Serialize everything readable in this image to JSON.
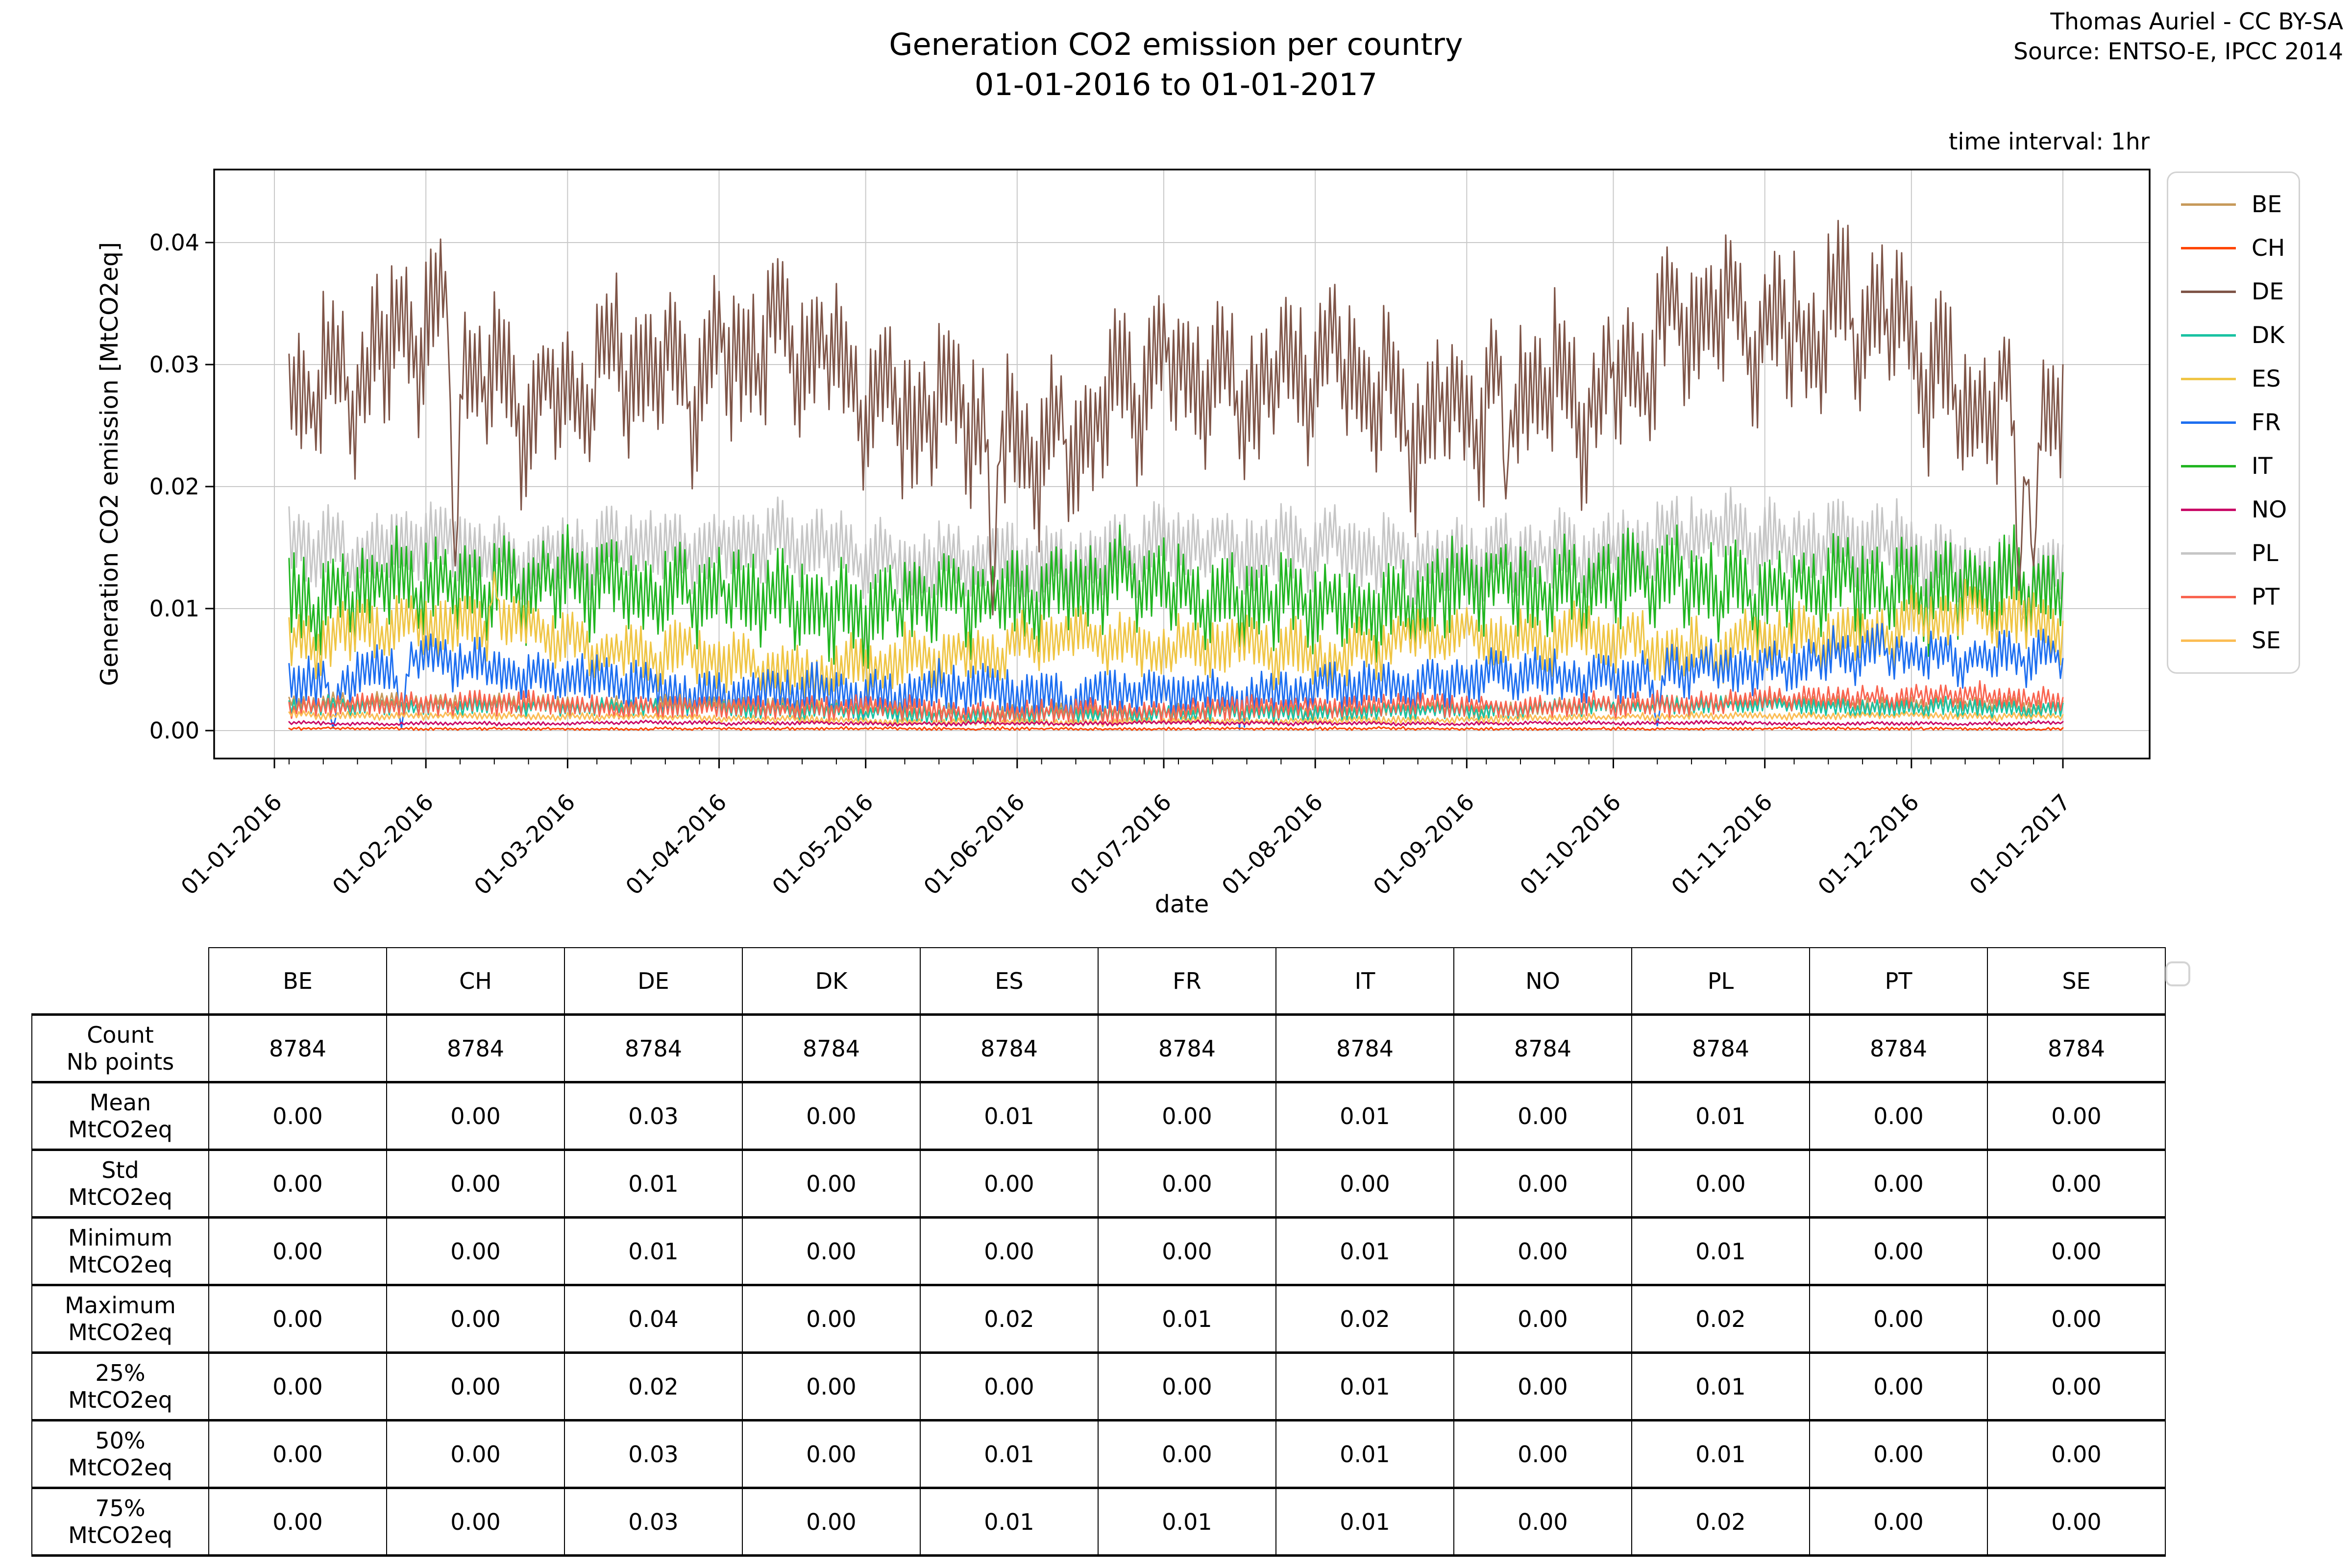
{
  "page": {
    "title_line1": "Generation CO2 emission per country",
    "title_line2": "01-01-2016 to 01-01-2017",
    "attribution_line1": "Thomas Auriel - CC BY-SA",
    "attribution_line2": "Source: ENTSO-E, IPCC 2014",
    "time_interval_note": "time interval: 1hr"
  },
  "chart_data": {
    "type": "line",
    "title": "Generation CO2 emission per country 01-01-2016 to 01-01-2017",
    "xlabel": "date",
    "ylabel": "Generation CO2 emission [MtCO2eq]",
    "x_tick_labels": [
      "01-01-2016",
      "01-02-2016",
      "01-03-2016",
      "01-04-2016",
      "01-05-2016",
      "01-06-2016",
      "01-07-2016",
      "01-08-2016",
      "01-09-2016",
      "01-10-2016",
      "01-11-2016",
      "01-12-2016",
      "01-01-2017"
    ],
    "month_day_offsets": [
      0,
      31,
      60,
      91,
      121,
      152,
      182,
      213,
      244,
      274,
      305,
      335,
      366
    ],
    "y_ticks": [
      "0.00",
      "0.01",
      "0.02",
      "0.03",
      "0.04"
    ],
    "y_tick_values": [
      0.0,
      0.01,
      0.02,
      0.03,
      0.04
    ],
    "ylim": [
      -0.0023,
      0.046
    ],
    "x_range_days": 366,
    "data_start_day": 3,
    "grid": true,
    "grid_color": "#c9c9c9",
    "axis_color": "#000000",
    "legend_position": "right",
    "draw_order": [
      "PL",
      "IT",
      "ES",
      "FR",
      "BE",
      "DK",
      "PT",
      "SE",
      "NO",
      "CH",
      "DE"
    ],
    "series": [
      {
        "name": "BE",
        "color": "#c79a5b",
        "monthly_levels": [
          0.0021,
          0.0026,
          0.0023,
          0.0021,
          0.0018,
          0.0016,
          0.0016,
          0.0016,
          0.0019,
          0.0021,
          0.0023,
          0.0023,
          0.0021
        ],
        "daily_amplitude": 0.00055,
        "noise": 0.00018,
        "weekend_dip": 0.06,
        "wander": 0.0002,
        "spikes": []
      },
      {
        "name": "CH",
        "color": "#ff4500",
        "monthly_levels": [
          0.00015,
          0.00015,
          0.00015,
          0.00015,
          0.00015,
          0.00015,
          0.00015,
          0.00015,
          0.00015,
          0.00015,
          0.00015,
          0.00015,
          0.00015
        ],
        "daily_amplitude": 8e-05,
        "noise": 6e-05,
        "weekend_dip": 0,
        "wander": 4e-05,
        "spikes": []
      },
      {
        "name": "DE",
        "color": "#7f5548",
        "monthly_levels": [
          0.0258,
          0.0338,
          0.0302,
          0.0308,
          0.0292,
          0.0266,
          0.0292,
          0.0282,
          0.0292,
          0.031,
          0.033,
          0.0342,
          0.0262
        ],
        "daily_amplitude": 0.0046,
        "noise": 0.0012,
        "weekend_dip": 0.12,
        "wander": 0.004,
        "spikes": [
          {
            "day": 37,
            "value": 0.0135
          },
          {
            "day": 147,
            "value": 0.0095
          },
          {
            "day": 252,
            "value": 0.019
          },
          {
            "day": 357,
            "value": 0.0115
          },
          {
            "day": 360,
            "value": 0.0135
          }
        ]
      },
      {
        "name": "DK",
        "color": "#1ac2a2",
        "monthly_levels": [
          0.0019,
          0.0022,
          0.002,
          0.0018,
          0.0015,
          0.0013,
          0.0013,
          0.0015,
          0.0018,
          0.002,
          0.0021,
          0.002,
          0.0018
        ],
        "daily_amplitude": 0.0006,
        "noise": 0.0002,
        "weekend_dip": 0.1,
        "wander": 0.0002,
        "spikes": []
      },
      {
        "name": "ES",
        "color": "#efc545",
        "monthly_levels": [
          0.0075,
          0.0095,
          0.007,
          0.006,
          0.0055,
          0.0065,
          0.0075,
          0.007,
          0.0075,
          0.007,
          0.008,
          0.009,
          0.0088
        ],
        "daily_amplitude": 0.002,
        "noise": 0.0005,
        "weekend_dip": 0.1,
        "wander": 0.0012,
        "spikes": [
          {
            "day": 45,
            "value": 0.013
          }
        ]
      },
      {
        "name": "FR",
        "color": "#1e6ff0",
        "monthly_levels": [
          0.0042,
          0.0055,
          0.0045,
          0.0035,
          0.003,
          0.003,
          0.0035,
          0.0032,
          0.004,
          0.005,
          0.0058,
          0.0062,
          0.006
        ],
        "daily_amplitude": 0.0017,
        "noise": 0.0004,
        "weekend_dip": 0.15,
        "wander": 0.0008,
        "spikes": [
          {
            "day": 12,
            "value": 0.0002
          },
          {
            "day": 26,
            "value": 0.0002
          },
          {
            "day": 283,
            "value": 0.0004
          }
        ]
      },
      {
        "name": "IT",
        "color": "#21b521",
        "monthly_levels": [
          0.0121,
          0.0128,
          0.0121,
          0.0118,
          0.0113,
          0.0113,
          0.0121,
          0.0113,
          0.0118,
          0.0122,
          0.0128,
          0.0128,
          0.0113
        ],
        "daily_amplitude": 0.003,
        "noise": 0.0007,
        "weekend_dip": 0.16,
        "wander": 0.0012,
        "spikes": []
      },
      {
        "name": "NO",
        "color": "#c90b67",
        "monthly_levels": [
          0.0006,
          0.0006,
          0.0006,
          0.0006,
          0.0006,
          0.0006,
          0.0006,
          0.0006,
          0.0006,
          0.0006,
          0.0006,
          0.0006,
          0.0006
        ],
        "daily_amplitude": 0.00012,
        "noise": 5e-05,
        "weekend_dip": 0,
        "wander": 8e-05,
        "spikes": []
      },
      {
        "name": "PL",
        "color": "#c6c6c6",
        "monthly_levels": [
          0.0148,
          0.0158,
          0.015,
          0.015,
          0.0148,
          0.0143,
          0.0148,
          0.015,
          0.015,
          0.0152,
          0.0158,
          0.0156,
          0.0128
        ],
        "daily_amplitude": 0.0026,
        "noise": 0.0006,
        "weekend_dip": 0.08,
        "wander": 0.0012,
        "spikes": [
          {
            "day": 358,
            "value": 0.0092
          }
        ]
      },
      {
        "name": "PT",
        "color": "#f96450",
        "monthly_levels": [
          0.0016,
          0.0022,
          0.0022,
          0.002,
          0.0018,
          0.0015,
          0.0018,
          0.002,
          0.002,
          0.0022,
          0.0026,
          0.0028,
          0.0028
        ],
        "daily_amplitude": 0.0008,
        "noise": 0.0003,
        "weekend_dip": 0.08,
        "wander": 0.0003,
        "spikes": []
      },
      {
        "name": "SE",
        "color": "#fbbd55",
        "monthly_levels": [
          0.0012,
          0.0013,
          0.0012,
          0.001,
          0.0008,
          0.0007,
          0.0007,
          0.0008,
          0.001,
          0.0011,
          0.0012,
          0.0013,
          0.0012
        ],
        "daily_amplitude": 0.00025,
        "noise": 0.0001,
        "weekend_dip": 0.05,
        "wander": 0.0001,
        "spikes": []
      }
    ]
  },
  "table": {
    "columns": [
      "BE",
      "CH",
      "DE",
      "DK",
      "ES",
      "FR",
      "IT",
      "NO",
      "PL",
      "PT",
      "SE"
    ],
    "rows": [
      {
        "label_line1": "Count",
        "label_line2": "Nb points",
        "values": [
          "8784",
          "8784",
          "8784",
          "8784",
          "8784",
          "8784",
          "8784",
          "8784",
          "8784",
          "8784",
          "8784"
        ]
      },
      {
        "label_line1": "Mean",
        "label_line2": "MtCO2eq",
        "values": [
          "0.00",
          "0.00",
          "0.03",
          "0.00",
          "0.01",
          "0.00",
          "0.01",
          "0.00",
          "0.01",
          "0.00",
          "0.00"
        ]
      },
      {
        "label_line1": "Std",
        "label_line2": "MtCO2eq",
        "values": [
          "0.00",
          "0.00",
          "0.01",
          "0.00",
          "0.00",
          "0.00",
          "0.00",
          "0.00",
          "0.00",
          "0.00",
          "0.00"
        ]
      },
      {
        "label_line1": "Minimum",
        "label_line2": "MtCO2eq",
        "values": [
          "0.00",
          "0.00",
          "0.01",
          "0.00",
          "0.00",
          "0.00",
          "0.01",
          "0.00",
          "0.01",
          "0.00",
          "0.00"
        ]
      },
      {
        "label_line1": "Maximum",
        "label_line2": "MtCO2eq",
        "values": [
          "0.00",
          "0.00",
          "0.04",
          "0.00",
          "0.02",
          "0.01",
          "0.02",
          "0.00",
          "0.02",
          "0.00",
          "0.00"
        ]
      },
      {
        "label_line1": "25%",
        "label_line2": "MtCO2eq",
        "values": [
          "0.00",
          "0.00",
          "0.02",
          "0.00",
          "0.00",
          "0.00",
          "0.01",
          "0.00",
          "0.01",
          "0.00",
          "0.00"
        ]
      },
      {
        "label_line1": "50%",
        "label_line2": "MtCO2eq",
        "values": [
          "0.00",
          "0.00",
          "0.03",
          "0.00",
          "0.01",
          "0.00",
          "0.01",
          "0.00",
          "0.01",
          "0.00",
          "0.00"
        ]
      },
      {
        "label_line1": "75%",
        "label_line2": "MtCO2eq",
        "values": [
          "0.00",
          "0.00",
          "0.03",
          "0.00",
          "0.01",
          "0.01",
          "0.01",
          "0.00",
          "0.02",
          "0.00",
          "0.00"
        ]
      }
    ]
  }
}
